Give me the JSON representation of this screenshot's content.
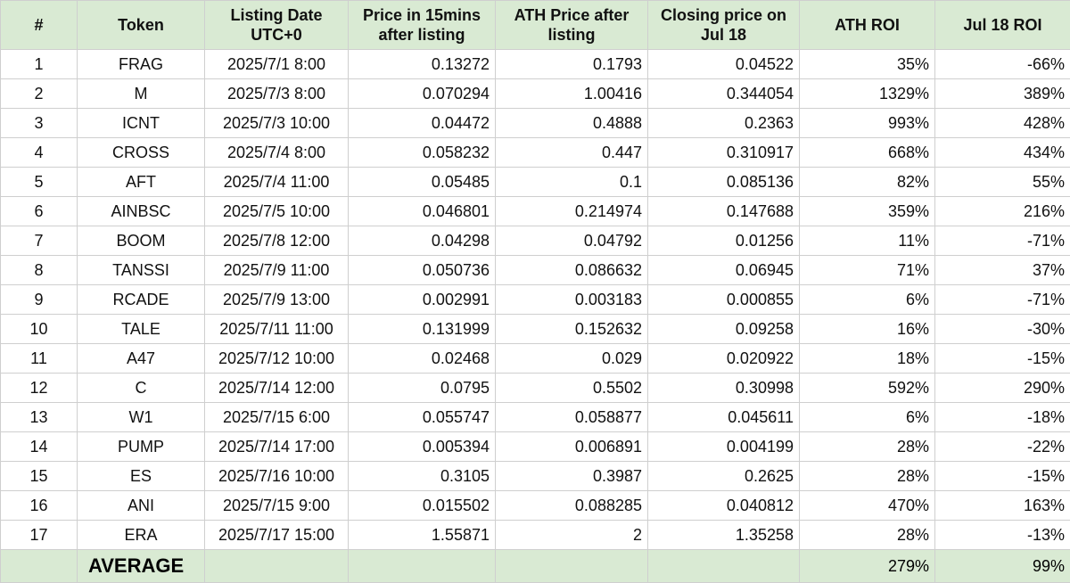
{
  "table": {
    "headers": [
      "#",
      "Token",
      "Listing Date UTC+0",
      "Price in 15mins after listing",
      "ATH Price after listing",
      "Closing price on Jul 18",
      "ATH ROI",
      "Jul 18 ROI"
    ],
    "rows": [
      [
        "1",
        "FRAG",
        "2025/7/1 8:00",
        "0.13272",
        "0.1793",
        "0.04522",
        "35%",
        "-66%"
      ],
      [
        "2",
        "M",
        "2025/7/3 8:00",
        "0.070294",
        "1.00416",
        "0.344054",
        "1329%",
        "389%"
      ],
      [
        "3",
        "ICNT",
        "2025/7/3 10:00",
        "0.04472",
        "0.4888",
        "0.2363",
        "993%",
        "428%"
      ],
      [
        "4",
        "CROSS",
        "2025/7/4 8:00",
        "0.058232",
        "0.447",
        "0.310917",
        "668%",
        "434%"
      ],
      [
        "5",
        "AFT",
        "2025/7/4 11:00",
        "0.05485",
        "0.1",
        "0.085136",
        "82%",
        "55%"
      ],
      [
        "6",
        "AINBSC",
        "2025/7/5 10:00",
        "0.046801",
        "0.214974",
        "0.147688",
        "359%",
        "216%"
      ],
      [
        "7",
        "BOOM",
        "2025/7/8 12:00",
        "0.04298",
        "0.04792",
        "0.01256",
        "11%",
        "-71%"
      ],
      [
        "8",
        "TANSSI",
        "2025/7/9 11:00",
        "0.050736",
        "0.086632",
        "0.06945",
        "71%",
        "37%"
      ],
      [
        "9",
        "RCADE",
        "2025/7/9 13:00",
        "0.002991",
        "0.003183",
        "0.000855",
        "6%",
        "-71%"
      ],
      [
        "10",
        "TALE",
        "2025/7/11 11:00",
        "0.131999",
        "0.152632",
        "0.09258",
        "16%",
        "-30%"
      ],
      [
        "11",
        "A47",
        "2025/7/12 10:00",
        "0.02468",
        "0.029",
        "0.020922",
        "18%",
        "-15%"
      ],
      [
        "12",
        "C",
        "2025/7/14 12:00",
        "0.0795",
        "0.5502",
        "0.30998",
        "592%",
        "290%"
      ],
      [
        "13",
        "W1",
        "2025/7/15 6:00",
        "0.055747",
        "0.058877",
        "0.045611",
        "6%",
        "-18%"
      ],
      [
        "14",
        "PUMP",
        "2025/7/14 17:00",
        "0.005394",
        "0.006891",
        "0.004199",
        "28%",
        "-22%"
      ],
      [
        "15",
        "ES",
        "2025/7/16 10:00",
        "0.3105",
        "0.3987",
        "0.2625",
        "28%",
        "-15%"
      ],
      [
        "16",
        "ANI",
        "2025/7/15 9:00",
        "0.015502",
        "0.088285",
        "0.040812",
        "470%",
        "163%"
      ],
      [
        "17",
        "ERA",
        "2025/7/17 15:00",
        "1.55871",
        "2",
        "1.35258",
        "28%",
        "-13%"
      ]
    ],
    "footer": {
      "label": "AVERAGE",
      "ath_roi": "279%",
      "jul18_roi": "99%"
    }
  },
  "colors": {
    "header_bg": "#d9ead3",
    "grid": "#cfcfcf"
  }
}
